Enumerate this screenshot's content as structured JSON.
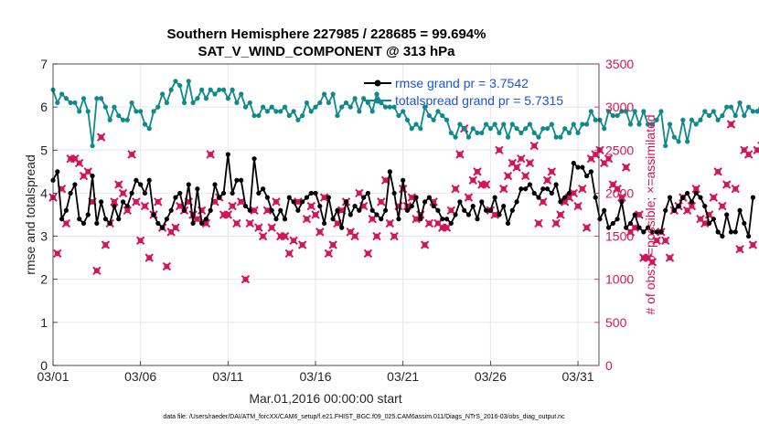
{
  "colors": {
    "rmse": "#000000",
    "spread": "#0f8a8a",
    "obs": "#d4145a",
    "grid": "#e6e6e6",
    "axis": "#262626",
    "legend_text": "#1a55d6"
  },
  "chart_data": {
    "type": "line",
    "title": "Southern Hemisphere 227985 / 228685 = 99.694%",
    "subtitle": "SAT_V_WIND_COMPONENT @ 313 hPa",
    "xlabel": "Mar.01,2016 00:00:00 start",
    "ylabel": "rmse and totalspread",
    "y2label": "# of obs: o=possible; ×=assimilated",
    "footer": "data file: /Users/raeder/DAI/ATM_forcXX/CAM6_setup/f.e21.FHIST_BGC.f09_025.CAM6assim.011/Diags_NTrS_2016-03/obs_diag_output.nc",
    "x_range": [
      1,
      32.2
    ],
    "ylim": [
      0,
      7
    ],
    "y2lim": [
      0,
      3500
    ],
    "x_ticks": [
      1,
      6,
      11,
      16,
      21,
      26,
      31
    ],
    "x_tick_labels": [
      "03/01",
      "03/06",
      "03/11",
      "03/16",
      "03/21",
      "03/26",
      "03/31"
    ],
    "y_ticks": [
      0,
      1,
      2,
      3,
      4,
      5,
      6,
      7
    ],
    "y2_ticks": [
      0,
      500,
      1000,
      1500,
      2000,
      2500,
      3000,
      3500
    ],
    "grid": true,
    "legend_position": "top-right",
    "legend": [
      "rmse grand pr = 3.7542",
      "totalspread grand pr = 5.7315"
    ],
    "x_step_days": 0.25,
    "series": [
      {
        "name": "rmse grand pr = 3.7542",
        "axis": "left",
        "values": [
          4.3,
          4.5,
          3.4,
          3.6,
          4.0,
          4.2,
          3.4,
          3.3,
          3.5,
          4.4,
          3.3,
          3.8,
          3.4,
          3.3,
          3.7,
          3.4,
          3.8,
          3.7,
          4.0,
          4.3,
          4.2,
          4.0,
          4.3,
          3.5,
          3.3,
          3.2,
          3.4,
          3.6,
          3.9,
          4.0,
          3.6,
          4.2,
          3.3,
          4.1,
          3.3,
          3.4,
          3.6,
          4.2,
          3.9,
          4.0,
          4.9,
          4.0,
          4.3,
          4.3,
          3.7,
          3.6,
          4.8,
          4.0,
          4.1,
          3.9,
          3.6,
          3.4,
          3.6,
          3.4,
          3.9,
          3.8,
          3.6,
          3.8,
          3.9,
          4.0,
          4.0,
          3.7,
          3.3,
          3.9,
          3.4,
          3.6,
          3.2,
          3.8,
          3.5,
          3.7,
          3.6,
          3.9,
          4.0,
          3.6,
          3.5,
          3.4,
          3.6,
          4.5,
          4.0,
          3.4,
          4.3,
          3.6,
          3.7,
          3.9,
          3.4,
          3.8,
          3.9,
          3.7,
          3.6,
          3.4,
          3.4,
          3.3,
          3.5,
          3.8,
          3.6,
          3.5,
          3.7,
          3.4,
          3.8,
          3.6,
          3.6,
          3.9,
          3.5,
          3.7,
          3.3,
          3.6,
          3.8,
          4.1,
          4.1,
          4.2,
          4.0,
          3.9,
          4.1,
          4.1,
          4.0,
          4.2,
          3.8,
          3.9,
          4.0,
          4.7,
          4.6,
          4.6,
          4.4,
          4.5,
          3.9,
          3.4,
          3.6,
          3.2,
          3.3,
          3.4,
          3.8,
          3.2,
          3.3,
          3.5,
          3.2,
          3.1,
          3.2,
          3.1,
          3.1,
          3.1,
          3.6,
          3.9,
          3.6,
          3.7,
          3.9,
          4.0,
          3.8,
          4.0,
          3.9,
          3.7,
          3.3,
          3.4,
          3.1,
          3.0,
          3.5,
          3.1,
          3.1,
          3.6,
          3.3,
          3.0,
          3.9
        ]
      },
      {
        "name": "totalspread grand pr = 5.7315",
        "axis": "left",
        "values": [
          6.4,
          6.1,
          6.3,
          6.2,
          6.1,
          6.1,
          5.9,
          6.2,
          5.9,
          5.1,
          6.2,
          6.2,
          6.0,
          5.7,
          6.0,
          5.8,
          5.7,
          5.7,
          6.1,
          5.9,
          5.9,
          5.6,
          5.5,
          5.9,
          6.0,
          6.3,
          6.1,
          6.4,
          6.6,
          6.5,
          6.1,
          6.6,
          6.1,
          6.2,
          6.4,
          6.2,
          6.4,
          6.3,
          6.4,
          6.4,
          6.2,
          6.4,
          6.1,
          6.3,
          6.0,
          6.1,
          5.8,
          5.8,
          6.0,
          5.9,
          6.0,
          5.9,
          5.9,
          6.0,
          5.8,
          5.9,
          5.7,
          5.8,
          6.1,
          5.9,
          6.0,
          6.1,
          6.3,
          6.1,
          6.3,
          5.8,
          6.0,
          6.1,
          6.0,
          6.2,
          5.9,
          6.2,
          6.1,
          5.9,
          6.3,
          6.1,
          6.0,
          6.0,
          6.0,
          5.8,
          5.9,
          5.7,
          5.5,
          5.6,
          5.5,
          6.0,
          5.8,
          5.7,
          5.9,
          5.8,
          5.7,
          5.4,
          5.3,
          5.6,
          5.5,
          5.3,
          5.5,
          5.4,
          5.4,
          5.6,
          5.5,
          5.6,
          5.4,
          5.6,
          5.3,
          5.6,
          5.5,
          5.4,
          5.5,
          5.6,
          5.4,
          5.3,
          5.5,
          5.5,
          5.6,
          5.3,
          5.3,
          5.5,
          5.4,
          5.6,
          5.4,
          5.6,
          5.6,
          5.9,
          5.7,
          5.7,
          5.5,
          5.9,
          5.8,
          5.8,
          5.9,
          5.9,
          5.6,
          5.9,
          5.6,
          5.9,
          5.6,
          5.6,
          5.7,
          5.9,
          5.1,
          5.6,
          5.3,
          5.2,
          5.7,
          5.2,
          5.7,
          5.6,
          5.7,
          5.9,
          5.8,
          5.9,
          5.7,
          5.8,
          6.0,
          6.0,
          5.8,
          6.1,
          5.8,
          6.0,
          5.9,
          5.9,
          6.1,
          5.5
        ]
      },
      {
        "name": "",
        "axis": "right",
        "values": [
          1950,
          1300,
          2050,
          1650,
          2400,
          2400,
          2350,
          2200,
          2250,
          1900,
          1100,
          2650,
          1400,
          1650,
          1900,
          2100,
          2000,
          1800,
          2450,
          1900,
          1450,
          1850,
          1250,
          1750,
          1900,
          1600,
          1150,
          1550,
          1600,
          1850,
          1800,
          1900,
          1750,
          1700,
          1800,
          1650,
          2450,
          1900,
          1950,
          1750,
          1750,
          1850,
          1650,
          1900,
          1000,
          1650,
          1800,
          1600,
          1500,
          1800,
          1600,
          1900,
          1500,
          1500,
          1300,
          1450,
          1900,
          1400,
          1700,
          1850,
          1750,
          1550,
          1950,
          1300,
          1400,
          1650,
          1800,
          1900,
          1550,
          1500,
          2000,
          1850,
          1300,
          1700,
          1500,
          1900,
          2150,
          1650,
          1500,
          1850,
          2050,
          1850,
          1950,
          1700,
          1750,
          1400,
          1650,
          1900,
          1650,
          1600,
          1600,
          1800,
          2050,
          2450,
          2750,
          1950,
          2150,
          2250,
          2100,
          2100,
          1800,
          1750,
          2500,
          2050,
          2200,
          2350,
          2300,
          2400,
          2200,
          2350,
          2550,
          1650,
          1900,
          2150,
          2250,
          1650,
          1750,
          1900,
          1950,
          2000,
          1850,
          2050,
          1600,
          2400,
          2450,
          2500,
          2350,
          2400,
          2100,
          2050,
          1950,
          2300,
          1550,
          1600,
          1750,
          1250,
          1250,
          1200,
          1450,
          1550,
          1450,
          1250,
          1800,
          1850,
          1950,
          1800,
          1850,
          2050,
          1700,
          1650,
          1750,
          1950,
          2250,
          1850,
          2100,
          2800,
          2050,
          1350,
          2500,
          2450,
          1400,
          2500,
          2550,
          2300,
          1800,
          2150,
          2000,
          1050,
          0
        ]
      }
    ]
  }
}
